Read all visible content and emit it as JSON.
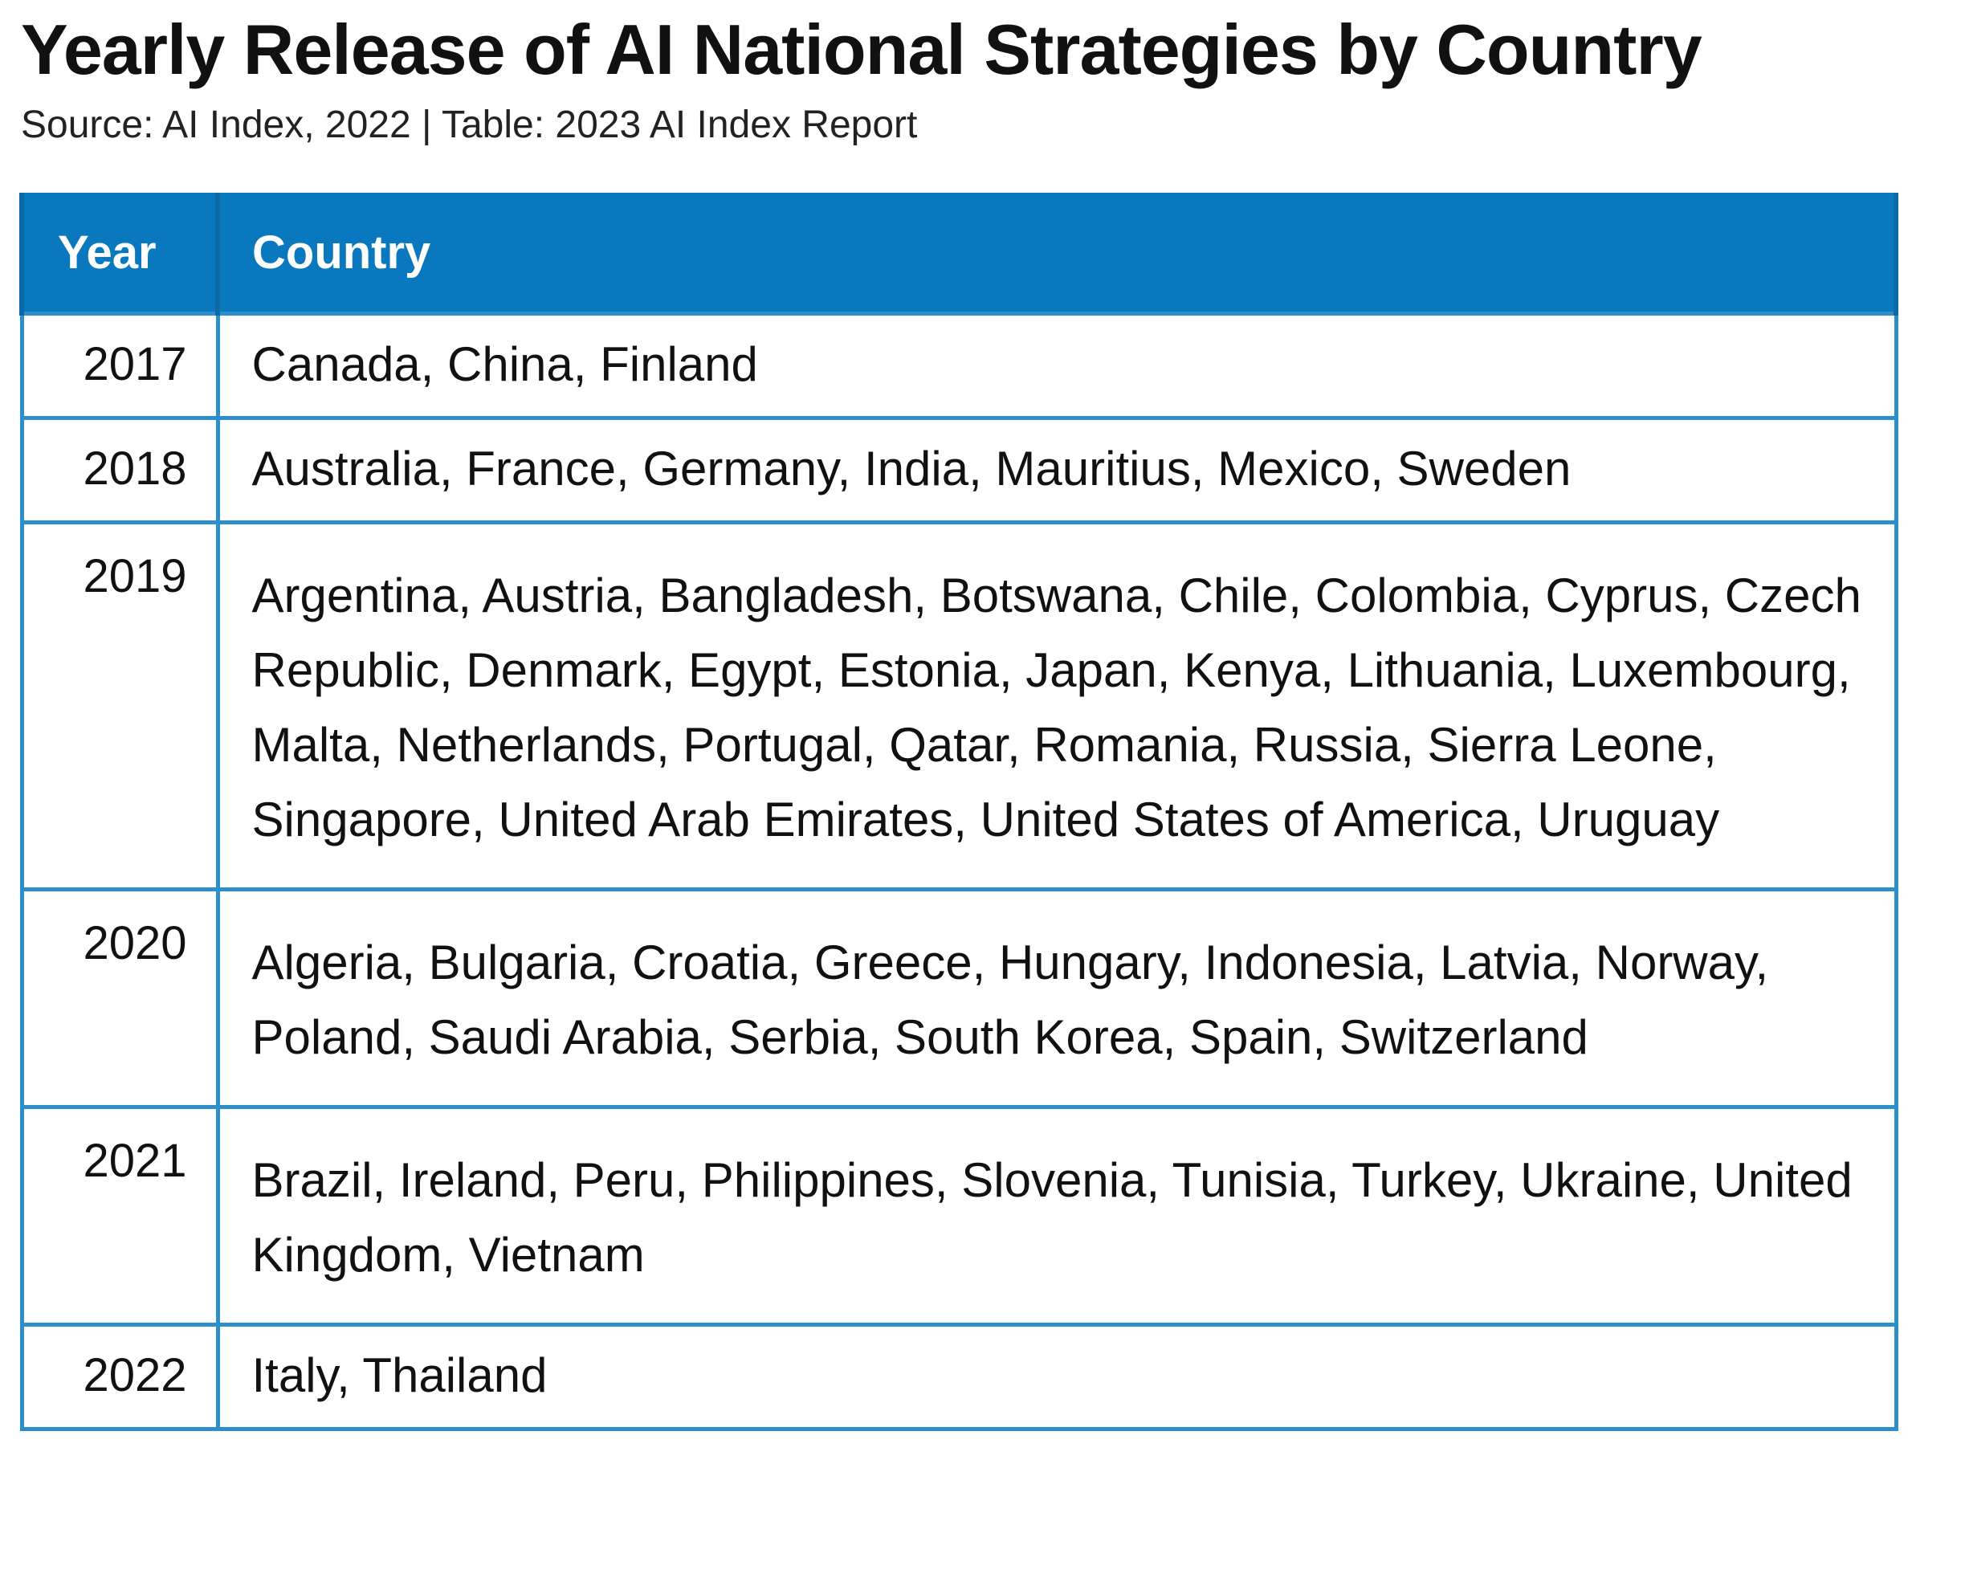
{
  "chart_data": {
    "type": "table",
    "title": "Yearly Release of AI National Strategies by Country",
    "subtitle": "Source: AI Index, 2022 | Table: 2023 AI Index Report",
    "columns": [
      "Year",
      "Country"
    ],
    "rows": [
      {
        "year": "2017",
        "countries": "Canada, China, Finland"
      },
      {
        "year": "2018",
        "countries": "Australia, France, Germany, India, Mauritius, Mexico, Sweden"
      },
      {
        "year": "2019",
        "countries": "Argentina, Austria, Bangladesh, Botswana, Chile, Colombia, Cyprus, Czech Republic, Denmark, Egypt, Estonia, Japan, Kenya, Lithuania, Luxembourg, Malta, Netherlands, Portugal, Qatar, Romania, Russia, Sierra Leone, Singapore, United Arab Emirates, United States of America, Uruguay"
      },
      {
        "year": "2020",
        "countries": "Algeria, Bulgaria, Croatia, Greece, Hungary, Indonesia, Latvia, Norway, Poland, Saudi Arabia, Serbia, South Korea, Spain, Switzerland"
      },
      {
        "year": "2021",
        "countries": "Brazil, Ireland, Peru, Philippines, Slovenia, Tunisia, Turkey, Ukraine, United Kingdom, Vietnam"
      },
      {
        "year": "2022",
        "countries": "Italy, Thailand"
      }
    ]
  },
  "colors": {
    "header_bg": "#0a78be",
    "header_text": "#ffffff",
    "border": "#2d8fca"
  }
}
